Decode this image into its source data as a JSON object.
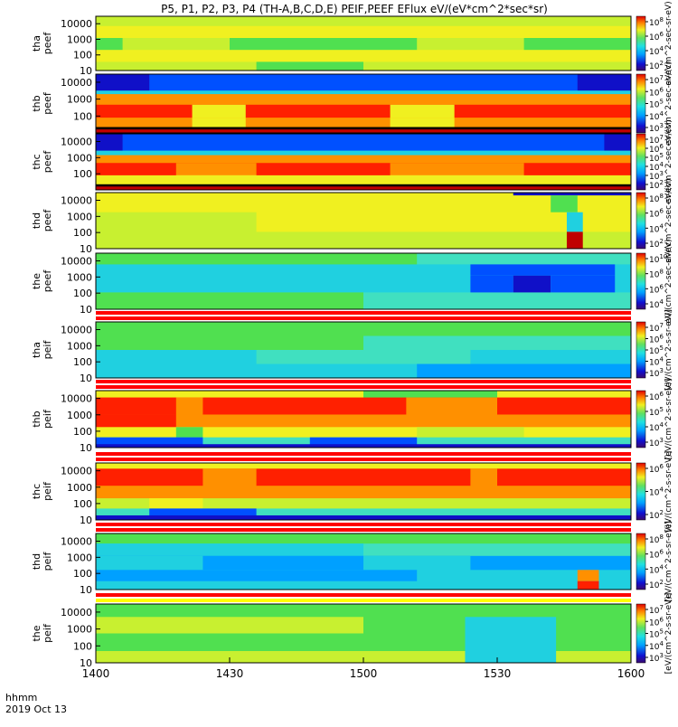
{
  "title": "P5, P1, P2, P3, P4 (TH-A,B,C,D,E) PEIF,PEEF EFlux eV/(eV*cm^2*sec*sr)",
  "footer": {
    "hhmm_label": "hhmm",
    "date_label": "2019 Oct 13"
  },
  "x_axis": {
    "ticks": [
      "1400",
      "1430",
      "1500",
      "1530",
      "1600"
    ]
  },
  "colorbar_units": {
    "electron": "eV/(cm^2-sec-sr-eV)",
    "ion": "[eV/(cm^2-s-sr-eV)]"
  },
  "chart_data": [
    {
      "type": "heatmap",
      "ylabel": [
        "tha",
        "peef"
      ],
      "y_ticks": [
        "10000",
        "1000",
        "100",
        "10"
      ],
      "colorbar_ticks": [
        "10^8",
        "10^6",
        "10^4",
        "10^2"
      ],
      "colorbar_unit": "electron",
      "xlim": [
        "1400",
        "1600"
      ],
      "y_scale": "log",
      "ylim": [
        10,
        30000
      ],
      "description_colors": "mostly yellow-green, mid-level eflux"
    },
    {
      "type": "heatmap",
      "ylabel": [
        "thb",
        "peef"
      ],
      "y_ticks": [
        "10000",
        "1000",
        "100"
      ],
      "colorbar_ticks": [
        "10^7",
        "10^6",
        "10^5",
        "10^4",
        "10^3"
      ],
      "colorbar_unit": "electron",
      "xlim": [
        "1400",
        "1600"
      ],
      "y_scale": "log",
      "ylim": [
        10,
        30000
      ]
    },
    {
      "type": "heatmap",
      "ylabel": [
        "thc",
        "peef"
      ],
      "y_ticks": [
        "10000",
        "1000",
        "100"
      ],
      "colorbar_ticks": [
        "10^7",
        "10^6",
        "10^5",
        "10^4",
        "10^3",
        "10^2"
      ],
      "colorbar_unit": "electron",
      "xlim": [
        "1400",
        "1600"
      ],
      "y_scale": "log",
      "ylim": [
        10,
        30000
      ]
    },
    {
      "type": "heatmap",
      "ylabel": [
        "thd",
        "peef"
      ],
      "y_ticks": [
        "10000",
        "1000",
        "100",
        "10"
      ],
      "colorbar_ticks": [
        "10^8",
        "10^6",
        "10^4",
        "10^2"
      ],
      "colorbar_unit": "electron",
      "xlim": [
        "1400",
        "1600"
      ],
      "y_scale": "log",
      "ylim": [
        10,
        30000
      ]
    },
    {
      "type": "heatmap",
      "ylabel": [
        "the",
        "peef"
      ],
      "y_ticks": [
        "10000",
        "1000",
        "100",
        "10"
      ],
      "colorbar_ticks": [
        "10^10",
        "10^8",
        "10^6",
        "10^4"
      ],
      "colorbar_unit": "electron",
      "xlim": [
        "1400",
        "1600"
      ],
      "y_scale": "log",
      "ylim": [
        10,
        30000
      ]
    },
    {
      "type": "heatmap",
      "ylabel": [
        "tha",
        "peif"
      ],
      "y_ticks": [
        "10000",
        "1000",
        "100",
        "10"
      ],
      "colorbar_ticks": [
        "10^7",
        "10^6",
        "10^5",
        "10^4",
        "10^3"
      ],
      "colorbar_unit": "ion",
      "xlim": [
        "1400",
        "1600"
      ],
      "y_scale": "log",
      "ylim": [
        10,
        30000
      ]
    },
    {
      "type": "heatmap",
      "ylabel": [
        "thb",
        "peif"
      ],
      "y_ticks": [
        "10000",
        "1000",
        "100",
        "10"
      ],
      "colorbar_ticks": [
        "10^6",
        "10^5",
        "10^4",
        "10^3"
      ],
      "colorbar_unit": "ion",
      "xlim": [
        "1400",
        "1600"
      ],
      "y_scale": "log",
      "ylim": [
        10,
        30000
      ]
    },
    {
      "type": "heatmap",
      "ylabel": [
        "thc",
        "peif"
      ],
      "y_ticks": [
        "10000",
        "1000",
        "100",
        "10"
      ],
      "colorbar_ticks": [
        "10^6",
        "10^4",
        "10^2"
      ],
      "colorbar_unit": "ion",
      "xlim": [
        "1400",
        "1600"
      ],
      "y_scale": "log",
      "ylim": [
        10,
        30000
      ]
    },
    {
      "type": "heatmap",
      "ylabel": [
        "thd",
        "peif"
      ],
      "y_ticks": [
        "10000",
        "1000",
        "100",
        "10"
      ],
      "colorbar_ticks": [
        "10^8",
        "10^6",
        "10^4",
        "10^2"
      ],
      "colorbar_unit": "ion",
      "xlim": [
        "1400",
        "1600"
      ],
      "y_scale": "log",
      "ylim": [
        10,
        30000
      ]
    },
    {
      "type": "heatmap",
      "ylabel": [
        "the",
        "peif"
      ],
      "y_ticks": [
        "10000",
        "1000",
        "100",
        "10"
      ],
      "colorbar_ticks": [
        "10^7",
        "10^6",
        "10^5",
        "10^4",
        "10^3"
      ],
      "colorbar_unit": "ion",
      "xlim": [
        "1400",
        "1600"
      ],
      "y_scale": "log",
      "ylim": [
        10,
        30000
      ]
    }
  ]
}
